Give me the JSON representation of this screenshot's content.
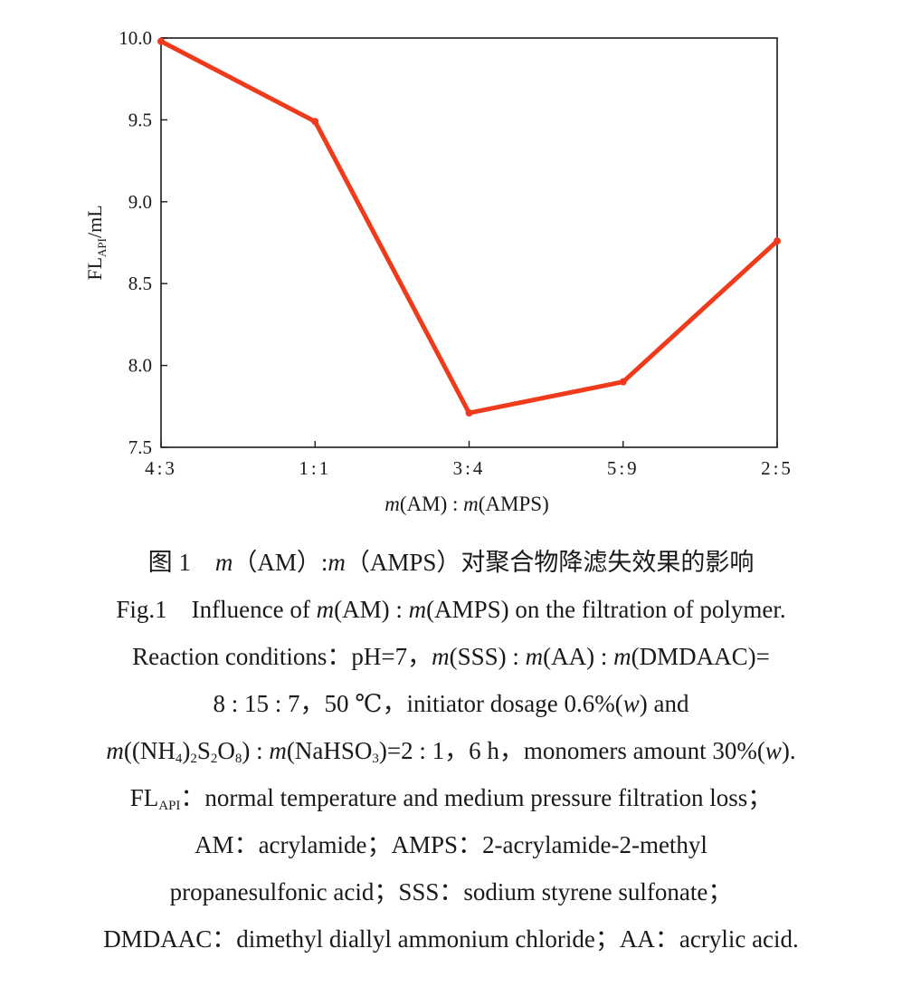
{
  "chart_data": {
    "type": "line",
    "categories": [
      "4:3",
      "1:1",
      "3:4",
      "5:9",
      "2:5"
    ],
    "series": [
      {
        "values": [
          9.98,
          9.49,
          7.71,
          7.9,
          8.76
        ]
      }
    ],
    "ylim": [
      7.5,
      10.0
    ],
    "yticks": [
      "7.5",
      "8.0",
      "8.5",
      "9.0",
      "9.5",
      "10.0"
    ],
    "ylabel_main": "FL",
    "ylabel_sub": "API",
    "ylabel_unit": "/mL",
    "xlabel": {
      "m1": "m",
      "p1": "(AM) : ",
      "m2": "m",
      "p2": "(AMPS)"
    },
    "line_color": "#f03a1c",
    "grid": false
  },
  "caption": {
    "cn": {
      "prefix": "图 1 ",
      "m1": "m",
      "a": "（AM）:",
      "m2": "m",
      "b": "（AMPS）对聚合物降滤失效果的影响"
    },
    "fig": {
      "a": "Fig.1 Influence of ",
      "m1": "m",
      "b": "(AM) : ",
      "m2": "m",
      "c": "(AMPS) on the filtration of polymer."
    },
    "l1": {
      "a": "Reaction conditions：pH=7，",
      "m1": "m",
      "b": "(SSS) : ",
      "m2": "m",
      "c": "(AA) : ",
      "m3": "m",
      "d": "(DMDAAC)="
    },
    "l2": {
      "a": "8 : 15 : 7，50 ℃，initiator dosage 0.6%(",
      "w": "w",
      "b": ") and"
    },
    "l3": {
      "m1": "m",
      "a": "((NH",
      "s1": "4",
      "b": ")",
      "s2": "2",
      "c": "S",
      "s3": "2",
      "d": "O",
      "s4": "8",
      "e": ") : ",
      "m2": "m",
      "f": "(NaHSO",
      "s5": "3",
      "g": ")=2 : 1，6 h，monomers amount 30%(",
      "w": "w",
      "h": ")."
    },
    "l4": {
      "a": "FL",
      "s": "API",
      "b": "：normal temperature and medium pressure filtration loss；"
    },
    "l5": "AM：acrylamide；AMPS：2-acrylamide-2-methyl",
    "l6": "propanesulfonic acid；SSS：sodium styrene sulfonate；",
    "l7": "DMDAAC：dimethyl diallyl ammonium chloride；AA：acrylic acid."
  }
}
